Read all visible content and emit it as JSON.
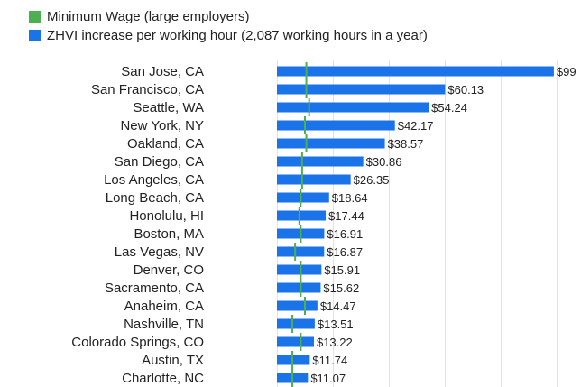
{
  "chart_data": {
    "type": "bar",
    "orientation": "horizontal",
    "categories": [
      "San Jose, CA",
      "San Francisco, CA",
      "Seattle, WA",
      "New York, NY",
      "Oakland, CA",
      "San Diego, CA",
      "Los Angeles, CA",
      "Long Beach, CA",
      "Honolulu, HI",
      "Boston, MA",
      "Las Vegas, NV",
      "Denver, CO",
      "Sacramento, CA",
      "Anaheim, CA",
      "Nashville, TN",
      "Colorado Springs, CO",
      "Austin, TX",
      "Charlotte, NC"
    ],
    "series": [
      {
        "name": "ZHVI increase per working hour (2,087 working hours in a year)",
        "kind": "bar",
        "color": "#1a73e8",
        "values": [
          99.0,
          60.13,
          54.24,
          42.17,
          38.57,
          30.86,
          26.35,
          18.64,
          17.44,
          16.91,
          16.87,
          15.91,
          15.62,
          14.47,
          13.51,
          13.22,
          11.74,
          11.07
        ],
        "labels": [
          "$99",
          "$60.13",
          "$54.24",
          "$42.17",
          "$38.57",
          "$30.86",
          "$26.35",
          "$18.64",
          "$17.44",
          "$16.91",
          "$16.87",
          "$15.91",
          "$15.62",
          "$14.47",
          "$13.51",
          "$13.22",
          "$11.74",
          "$11.07"
        ]
      },
      {
        "name": "Minimum Wage (large employers)",
        "kind": "marker",
        "color": "#4caf50",
        "values": [
          10.5,
          10.5,
          11.5,
          10.0,
          10.5,
          9.0,
          9.0,
          8.5,
          8.0,
          8.5,
          6.5,
          8.5,
          8.5,
          10.0,
          5.5,
          8.5,
          5.5,
          5.5
        ]
      }
    ],
    "xlim": [
      0,
      100
    ],
    "grid": true,
    "legend_position": "top-left",
    "title": "",
    "xlabel": "",
    "ylabel": ""
  }
}
